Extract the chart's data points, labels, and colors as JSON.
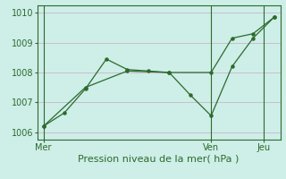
{
  "line1_x": [
    0,
    1,
    2,
    3,
    4,
    5,
    6,
    7,
    8,
    9,
    10,
    11
  ],
  "line1_y": [
    1006.2,
    1006.65,
    1007.45,
    1008.45,
    1008.1,
    1008.05,
    1008.0,
    1007.25,
    1006.55,
    1008.2,
    1009.15,
    1009.85
  ],
  "line2_x": [
    0,
    2,
    4,
    6,
    8,
    9,
    10,
    11
  ],
  "line2_y": [
    1006.2,
    1007.5,
    1008.05,
    1008.0,
    1008.0,
    1009.15,
    1009.3,
    1009.85
  ],
  "xlim": [
    -0.3,
    11.3
  ],
  "ylim": [
    1005.75,
    1010.25
  ],
  "yticks": [
    1006,
    1007,
    1008,
    1009,
    1010
  ],
  "xtick_positions": [
    0,
    8,
    10.5
  ],
  "xtick_labels": [
    "Mer",
    "Ven",
    "Jeu"
  ],
  "vline_positions": [
    0,
    8,
    10.5
  ],
  "line_color": "#2d6a2d",
  "bg_color": "#ceeee8",
  "grid_color": "#c8b8c8",
  "xlabel": "Pression niveau de la mer( hPa )",
  "xlabel_fontsize": 8,
  "tick_fontsize": 7
}
